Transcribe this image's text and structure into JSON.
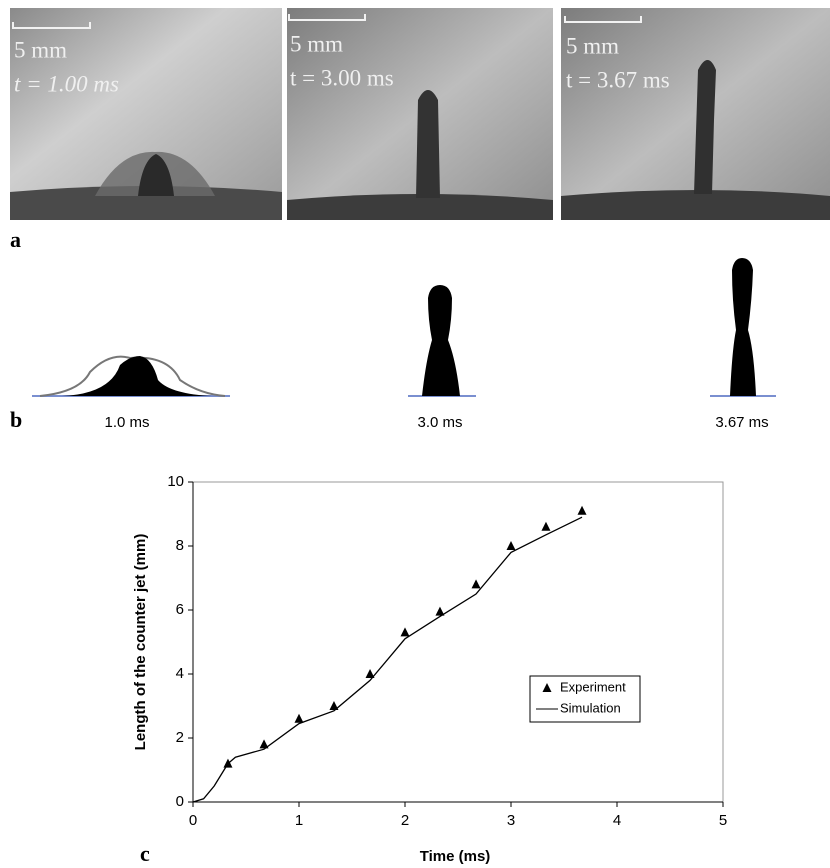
{
  "panel_a": {
    "label": "a",
    "images": [
      {
        "scale": "5 mm",
        "time": "t = 1.00 ms"
      },
      {
        "scale": "5 mm",
        "time": "t = 3.00 ms"
      },
      {
        "scale": "5 mm",
        "time": "t = 3.67 ms"
      }
    ]
  },
  "panel_b": {
    "label": "b",
    "captions": [
      "1.0 ms",
      "3.0 ms",
      "3.67 ms"
    ]
  },
  "chart_data": {
    "type": "line",
    "label": "c",
    "x_label": "Time (ms)",
    "y_label": "Length of the counter jet (mm)",
    "xlim": [
      0,
      5
    ],
    "xticks": [
      0,
      1,
      2,
      3,
      4,
      5
    ],
    "ylim": [
      0,
      10
    ],
    "yticks": [
      0,
      2,
      4,
      6,
      8,
      10
    ],
    "grid": false,
    "legend": "lower right",
    "series": [
      {
        "name": "Experiment",
        "style": "markers",
        "color": "#000000",
        "x": [
          0.33,
          0.67,
          1.0,
          1.33,
          1.67,
          2.0,
          2.33,
          2.67,
          3.0,
          3.33,
          3.67
        ],
        "values": [
          1.2,
          1.8,
          2.6,
          3.0,
          4.0,
          5.3,
          5.95,
          6.8,
          8.0,
          8.6,
          9.1
        ]
      },
      {
        "name": "Simulation",
        "style": "line",
        "color": "#000000",
        "x": [
          0,
          0.1,
          0.2,
          0.33,
          0.4,
          0.67,
          1.0,
          1.33,
          1.67,
          2.0,
          2.33,
          2.67,
          3.0,
          3.33,
          3.67
        ],
        "values": [
          0,
          0.1,
          0.5,
          1.2,
          1.4,
          1.65,
          2.45,
          2.85,
          3.8,
          5.1,
          5.8,
          6.5,
          7.8,
          8.35,
          8.9
        ]
      }
    ]
  }
}
